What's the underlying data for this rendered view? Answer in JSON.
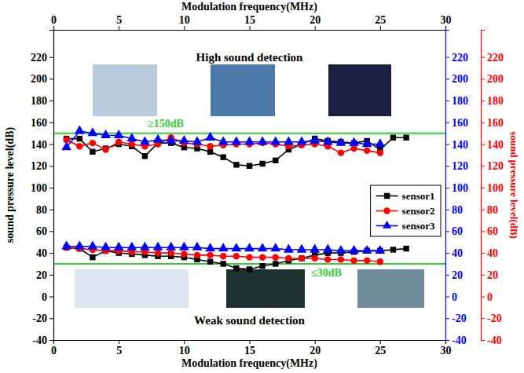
{
  "chart_data": {
    "type": "line",
    "xlabel": "Modulation frequency(MHz)",
    "ylabel": "sound pressure level(dB)",
    "y3label": "sound pressure level(dB)",
    "xlim": [
      0,
      30
    ],
    "xticks": [
      0,
      5,
      10,
      15,
      20,
      25,
      30
    ],
    "ylim": [
      -40,
      245
    ],
    "yticks": [
      -40,
      -20,
      0,
      20,
      40,
      60,
      80,
      100,
      120,
      140,
      160,
      180,
      200,
      220
    ],
    "y2lim": [
      -40,
      245
    ],
    "y2ticks": [
      -40,
      -20,
      0,
      20,
      40,
      60,
      80,
      100,
      120,
      140,
      160,
      180,
      200,
      220
    ],
    "y3lim": [
      -40,
      245
    ],
    "y3ticks": [
      -40,
      -20,
      0,
      20,
      40,
      60,
      80,
      100,
      120,
      140,
      160,
      180,
      200,
      220
    ],
    "legend": "right",
    "annotations": [
      "High sound detection",
      "Weak sound detection"
    ],
    "reference_lines": [
      {
        "value": 150,
        "label": "≥150dB",
        "color": "#33cc33"
      },
      {
        "value": 30,
        "label": "≤30dB",
        "color": "#33cc33"
      }
    ],
    "series": [
      {
        "name": "sensor1",
        "color": "#000000",
        "marker": "square",
        "line_style": "solid",
        "axis": "y",
        "x": [
          1,
          2,
          3,
          4,
          5,
          6,
          7,
          8,
          9,
          10,
          11,
          12,
          13,
          14,
          15,
          16,
          17,
          18,
          19,
          20,
          21,
          22,
          23,
          24,
          25,
          26,
          27
        ],
        "values": [
          145,
          145,
          133,
          136,
          140,
          138,
          129,
          141,
          141,
          137,
          136,
          133,
          128,
          121,
          120,
          122,
          125,
          135,
          140,
          145,
          143,
          142,
          141,
          143,
          135,
          146,
          146
        ],
        "weak_values": [
          45,
          44,
          36,
          42,
          40,
          39,
          38,
          37,
          37,
          36,
          34,
          32,
          30,
          26,
          25,
          28,
          30,
          33,
          35,
          38,
          40,
          40,
          41,
          42,
          42,
          43,
          44
        ]
      },
      {
        "name": "sensor2",
        "color": "#ff0000",
        "marker": "circle",
        "line_style": "solid",
        "axis": "y3",
        "x": [
          1,
          2,
          3,
          4,
          5,
          6,
          7,
          8,
          9,
          10,
          11,
          12,
          13,
          14,
          15,
          16,
          17,
          18,
          19,
          20,
          21,
          22,
          23,
          24,
          25
        ],
        "values": [
          144,
          138,
          141,
          135,
          142,
          140,
          138,
          140,
          146,
          141,
          140,
          138,
          139,
          140,
          140,
          141,
          140,
          138,
          139,
          140,
          138,
          132,
          136,
          134,
          132
        ],
        "weak_values": [
          45,
          44,
          43,
          42,
          42,
          41,
          41,
          40,
          40,
          39,
          38,
          38,
          37,
          37,
          36,
          36,
          36,
          35,
          35,
          35,
          34,
          34,
          33,
          33,
          32
        ]
      },
      {
        "name": "sensor3",
        "color": "#0000ff",
        "marker": "triangle",
        "line_style": "solid",
        "axis": "y2",
        "x": [
          1,
          2,
          3,
          4,
          5,
          6,
          7,
          8,
          9,
          10,
          11,
          12,
          13,
          14,
          15,
          16,
          17,
          18,
          19,
          20,
          21,
          22,
          23,
          24,
          25
        ],
        "values": [
          137,
          152,
          150,
          148,
          148,
          145,
          142,
          144,
          143,
          143,
          142,
          146,
          142,
          142,
          142,
          142,
          142,
          142,
          142,
          143,
          142,
          141,
          141,
          140,
          140
        ],
        "weak_values": [
          46,
          46,
          46,
          45,
          45,
          45,
          45,
          45,
          45,
          45,
          45,
          44,
          44,
          44,
          44,
          44,
          44,
          43,
          43,
          43,
          43,
          42,
          42,
          42,
          42
        ]
      }
    ]
  }
}
